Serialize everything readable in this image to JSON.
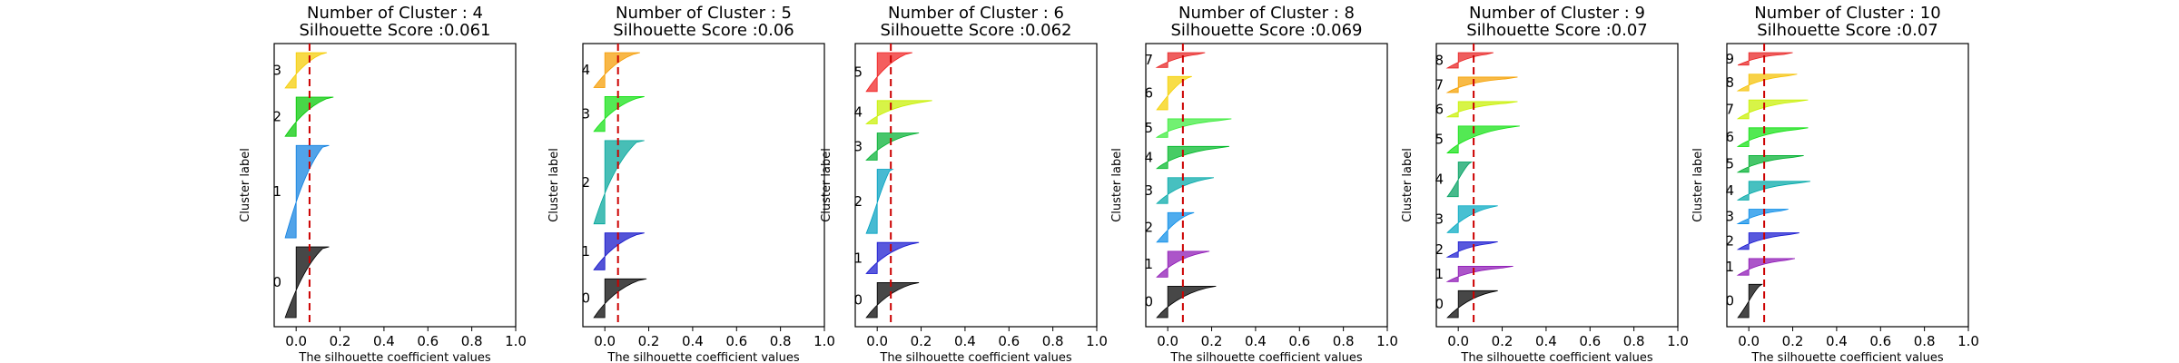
{
  "chart_data": [
    {
      "type": "silhouette",
      "title_line1": "Number of Cluster : 4",
      "title_line2": "Silhouette Score :0.061",
      "xlabel": "The silhouette coefficient values",
      "ylabel": "Cluster label",
      "xlim": [
        -0.1,
        1.0
      ],
      "xticks": [
        "0.0",
        "0.2",
        "0.4",
        "0.6",
        "0.8",
        "1.0"
      ],
      "avg_score": 0.061,
      "clusters": [
        {
          "label": "0",
          "size": 36,
          "max": 0.15,
          "color": "#000000"
        },
        {
          "label": "1",
          "size": 47,
          "max": 0.15,
          "color": "#0e7fe0"
        },
        {
          "label": "2",
          "size": 20,
          "max": 0.17,
          "color": "#00c800"
        },
        {
          "label": "3",
          "size": 18,
          "max": 0.14,
          "color": "#f5cc00"
        }
      ]
    },
    {
      "type": "silhouette",
      "title_line1": "Number of Cluster : 5",
      "title_line2": "Silhouette Score :0.06",
      "xlabel": "The silhouette coefficient values",
      "ylabel": "Cluster label",
      "xlim": [
        -0.1,
        1.0
      ],
      "xticks": [
        "0.0",
        "0.2",
        "0.4",
        "0.6",
        "0.8",
        "1.0"
      ],
      "avg_score": 0.06,
      "clusters": [
        {
          "label": "0",
          "size": 20,
          "max": 0.19,
          "color": "#000000"
        },
        {
          "label": "1",
          "size": 19,
          "max": 0.18,
          "color": "#1010c8"
        },
        {
          "label": "2",
          "size": 43,
          "max": 0.18,
          "color": "#00a59a"
        },
        {
          "label": "3",
          "size": 18,
          "max": 0.18,
          "color": "#10e010"
        },
        {
          "label": "4",
          "size": 18,
          "max": 0.16,
          "color": "#f59b00"
        }
      ]
    },
    {
      "type": "silhouette",
      "title_line1": "Number of Cluster : 6",
      "title_line2": "Silhouette Score :0.062",
      "xlabel": "The silhouette coefficient values",
      "ylabel": "Cluster label",
      "xlim": [
        -0.1,
        1.0
      ],
      "xticks": [
        "0.0",
        "0.2",
        "0.4",
        "0.6",
        "0.8",
        "1.0"
      ],
      "avg_score": 0.062,
      "clusters": [
        {
          "label": "0",
          "size": 18,
          "max": 0.19,
          "color": "#000000"
        },
        {
          "label": "1",
          "size": 16,
          "max": 0.19,
          "color": "#1818d0"
        },
        {
          "label": "2",
          "size": 33,
          "max": 0.07,
          "color": "#00a0c0"
        },
        {
          "label": "3",
          "size": 14,
          "max": 0.19,
          "color": "#00b030"
        },
        {
          "label": "4",
          "size": 12,
          "max": 0.25,
          "color": "#c8f000"
        },
        {
          "label": "5",
          "size": 20,
          "max": 0.16,
          "color": "#f02020"
        }
      ]
    },
    {
      "type": "silhouette",
      "title_line1": "Number of Cluster : 8",
      "title_line2": "Silhouette Score :0.069",
      "xlabel": "The silhouette coefficient values",
      "ylabel": "Cluster label",
      "xlim": [
        -0.1,
        1.0
      ],
      "xticks": [
        "0.0",
        "0.2",
        "0.4",
        "0.6",
        "0.8",
        "1.0"
      ],
      "avg_score": 0.069,
      "clusters": [
        {
          "label": "0",
          "size": 17,
          "max": 0.22,
          "color": "#000000"
        },
        {
          "label": "1",
          "size": 14,
          "max": 0.19,
          "color": "#8c14b4"
        },
        {
          "label": "2",
          "size": 16,
          "max": 0.12,
          "color": "#0a8ce8"
        },
        {
          "label": "3",
          "size": 14,
          "max": 0.21,
          "color": "#00a8a8"
        },
        {
          "label": "4",
          "size": 12,
          "max": 0.28,
          "color": "#00b828"
        },
        {
          "label": "5",
          "size": 10,
          "max": 0.29,
          "color": "#3cec3c"
        },
        {
          "label": "6",
          "size": 18,
          "max": 0.11,
          "color": "#f5d000"
        },
        {
          "label": "7",
          "size": 8,
          "max": 0.17,
          "color": "#e82020"
        }
      ]
    },
    {
      "type": "silhouette",
      "title_line1": "Number of Cluster : 9",
      "title_line2": "Silhouette Score :0.07",
      "xlabel": "The silhouette coefficient values",
      "ylabel": "Cluster label",
      "xlim": [
        -0.1,
        1.0
      ],
      "xticks": [
        "0.0",
        "0.2",
        "0.4",
        "0.6",
        "0.8",
        "1.0"
      ],
      "avg_score": 0.07,
      "clusters": [
        {
          "label": "0",
          "size": 14,
          "max": 0.18,
          "color": "#000000"
        },
        {
          "label": "1",
          "size": 8,
          "max": 0.25,
          "color": "#8c14b4"
        },
        {
          "label": "2",
          "size": 8,
          "max": 0.18,
          "color": "#1818d0"
        },
        {
          "label": "3",
          "size": 14,
          "max": 0.18,
          "color": "#00a8c0"
        },
        {
          "label": "4",
          "size": 18,
          "max": 0.06,
          "color": "#00a060"
        },
        {
          "label": "5",
          "size": 14,
          "max": 0.28,
          "color": "#10e010"
        },
        {
          "label": "6",
          "size": 8,
          "max": 0.27,
          "color": "#c8f000"
        },
        {
          "label": "7",
          "size": 8,
          "max": 0.27,
          "color": "#f5a000"
        },
        {
          "label": "8",
          "size": 8,
          "max": 0.16,
          "color": "#e82020"
        }
      ]
    },
    {
      "type": "silhouette",
      "title_line1": "Number of Cluster : 10",
      "title_line2": "Silhouette Score :0.07",
      "xlabel": "The silhouette coefficient values",
      "ylabel": "Cluster label",
      "xlim": [
        -0.1,
        1.0
      ],
      "xticks": [
        "0.0",
        "0.2",
        "0.4",
        "0.6",
        "0.8",
        "1.0"
      ],
      "avg_score": 0.07,
      "clusters": [
        {
          "label": "0",
          "size": 16,
          "max": 0.06,
          "color": "#000000"
        },
        {
          "label": "1",
          "size": 8,
          "max": 0.21,
          "color": "#8c14b4"
        },
        {
          "label": "2",
          "size": 8,
          "max": 0.23,
          "color": "#1818d0"
        },
        {
          "label": "3",
          "size": 7,
          "max": 0.18,
          "color": "#0a8ce8"
        },
        {
          "label": "4",
          "size": 9,
          "max": 0.28,
          "color": "#00a8a8"
        },
        {
          "label": "5",
          "size": 8,
          "max": 0.25,
          "color": "#00b030"
        },
        {
          "label": "6",
          "size": 9,
          "max": 0.27,
          "color": "#10e010"
        },
        {
          "label": "7",
          "size": 9,
          "max": 0.27,
          "color": "#c8f000"
        },
        {
          "label": "8",
          "size": 8,
          "max": 0.22,
          "color": "#f5c000"
        },
        {
          "label": "9",
          "size": 6,
          "max": 0.2,
          "color": "#e82020"
        }
      ]
    }
  ]
}
